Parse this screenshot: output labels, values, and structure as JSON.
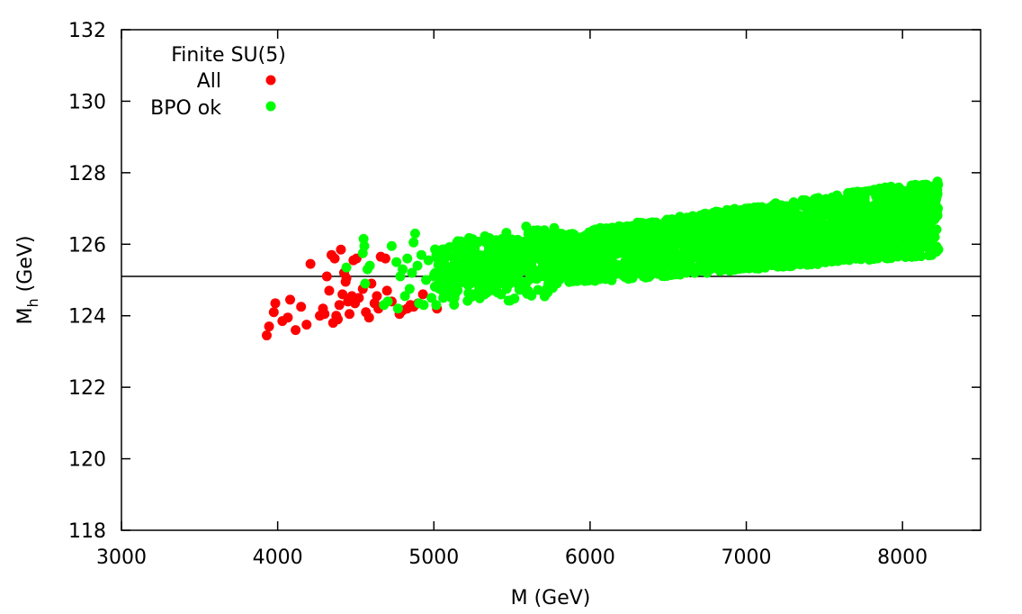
{
  "chart_data": {
    "type": "scatter",
    "title": "",
    "xlabel": "M (GeV)",
    "ylabel_main": "M",
    "ylabel_sub": "h",
    "ylabel_unit": "(GeV)",
    "xlim": [
      3000,
      8500
    ],
    "ylim": [
      118,
      132
    ],
    "xticks": [
      3000,
      4000,
      5000,
      6000,
      7000,
      8000
    ],
    "yticks": [
      118,
      120,
      122,
      124,
      126,
      128,
      130,
      132
    ],
    "grid": false,
    "legend_title": "Finite SU(5)",
    "legend_position": "top-left",
    "reference_line": {
      "y": 125.1
    },
    "series": [
      {
        "name": "All",
        "color": "#ff0000",
        "points": [
          [
            3930,
            123.45
          ],
          [
            3945,
            123.7
          ],
          [
            3975,
            124.1
          ],
          [
            3985,
            124.35
          ],
          [
            4030,
            123.85
          ],
          [
            4065,
            123.95
          ],
          [
            4080,
            124.45
          ],
          [
            4115,
            123.6
          ],
          [
            4150,
            124.25
          ],
          [
            4185,
            123.75
          ],
          [
            4210,
            125.45
          ],
          [
            4270,
            124.0
          ],
          [
            4290,
            124.2
          ],
          [
            4300,
            124.05
          ],
          [
            4315,
            125.1
          ],
          [
            4330,
            124.7
          ],
          [
            4345,
            125.7
          ],
          [
            4355,
            123.8
          ],
          [
            4365,
            125.6
          ],
          [
            4375,
            124.0
          ],
          [
            4385,
            123.9
          ],
          [
            4395,
            124.3
          ],
          [
            4405,
            125.85
          ],
          [
            4415,
            124.6
          ],
          [
            4425,
            125.2
          ],
          [
            4435,
            124.95
          ],
          [
            4440,
            125.05
          ],
          [
            4450,
            124.4
          ],
          [
            4460,
            124.05
          ],
          [
            4475,
            124.55
          ],
          [
            4485,
            125.55
          ],
          [
            4495,
            124.35
          ],
          [
            4505,
            125.6
          ],
          [
            4520,
            124.5
          ],
          [
            4545,
            124.75
          ],
          [
            4565,
            124.1
          ],
          [
            4585,
            123.95
          ],
          [
            4600,
            124.9
          ],
          [
            4620,
            124.35
          ],
          [
            4635,
            124.55
          ],
          [
            4645,
            124.2
          ],
          [
            4660,
            125.65
          ],
          [
            4690,
            125.6
          ],
          [
            4700,
            124.7
          ],
          [
            4730,
            124.4
          ],
          [
            4780,
            124.05
          ],
          [
            4800,
            124.15
          ],
          [
            4830,
            124.2
          ],
          [
            4850,
            124.3
          ],
          [
            4870,
            124.25
          ],
          [
            4900,
            124.35
          ],
          [
            4930,
            124.6
          ],
          [
            5020,
            124.2
          ]
        ]
      },
      {
        "name": "BPO ok",
        "color": "#00ff00",
        "points": [
          [
            4440,
            125.35
          ],
          [
            4545,
            125.75
          ],
          [
            4550,
            126.15
          ],
          [
            4555,
            125.95
          ],
          [
            4560,
            124.9
          ],
          [
            4575,
            125.3
          ],
          [
            4590,
            125.4
          ],
          [
            4680,
            124.3
          ],
          [
            4705,
            124.4
          ],
          [
            4730,
            125.95
          ],
          [
            4760,
            125.5
          ],
          [
            4770,
            124.2
          ],
          [
            4785,
            125.1
          ],
          [
            4800,
            125.3
          ],
          [
            4815,
            124.55
          ],
          [
            4830,
            125.6
          ],
          [
            4845,
            124.75
          ],
          [
            4860,
            125.2
          ],
          [
            4870,
            126.05
          ],
          [
            4880,
            126.3
          ],
          [
            4895,
            125.4
          ],
          [
            4905,
            124.35
          ],
          [
            4920,
            125.7
          ],
          [
            4935,
            124.3
          ],
          [
            4950,
            125.0
          ],
          [
            4965,
            125.55
          ],
          [
            4985,
            124.5
          ],
          [
            5000,
            125.1
          ],
          [
            5015,
            124.3
          ],
          [
            5030,
            125.8
          ],
          [
            5045,
            125.05
          ],
          [
            5060,
            124.5
          ]
        ],
        "band": {
          "description_free": "",
          "x_range": [
            5000,
            8230
          ],
          "low_at_start": 124.6,
          "low_at_end": 125.7,
          "high_at_start": 125.8,
          "high_at_end": 127.8
        }
      }
    ]
  }
}
